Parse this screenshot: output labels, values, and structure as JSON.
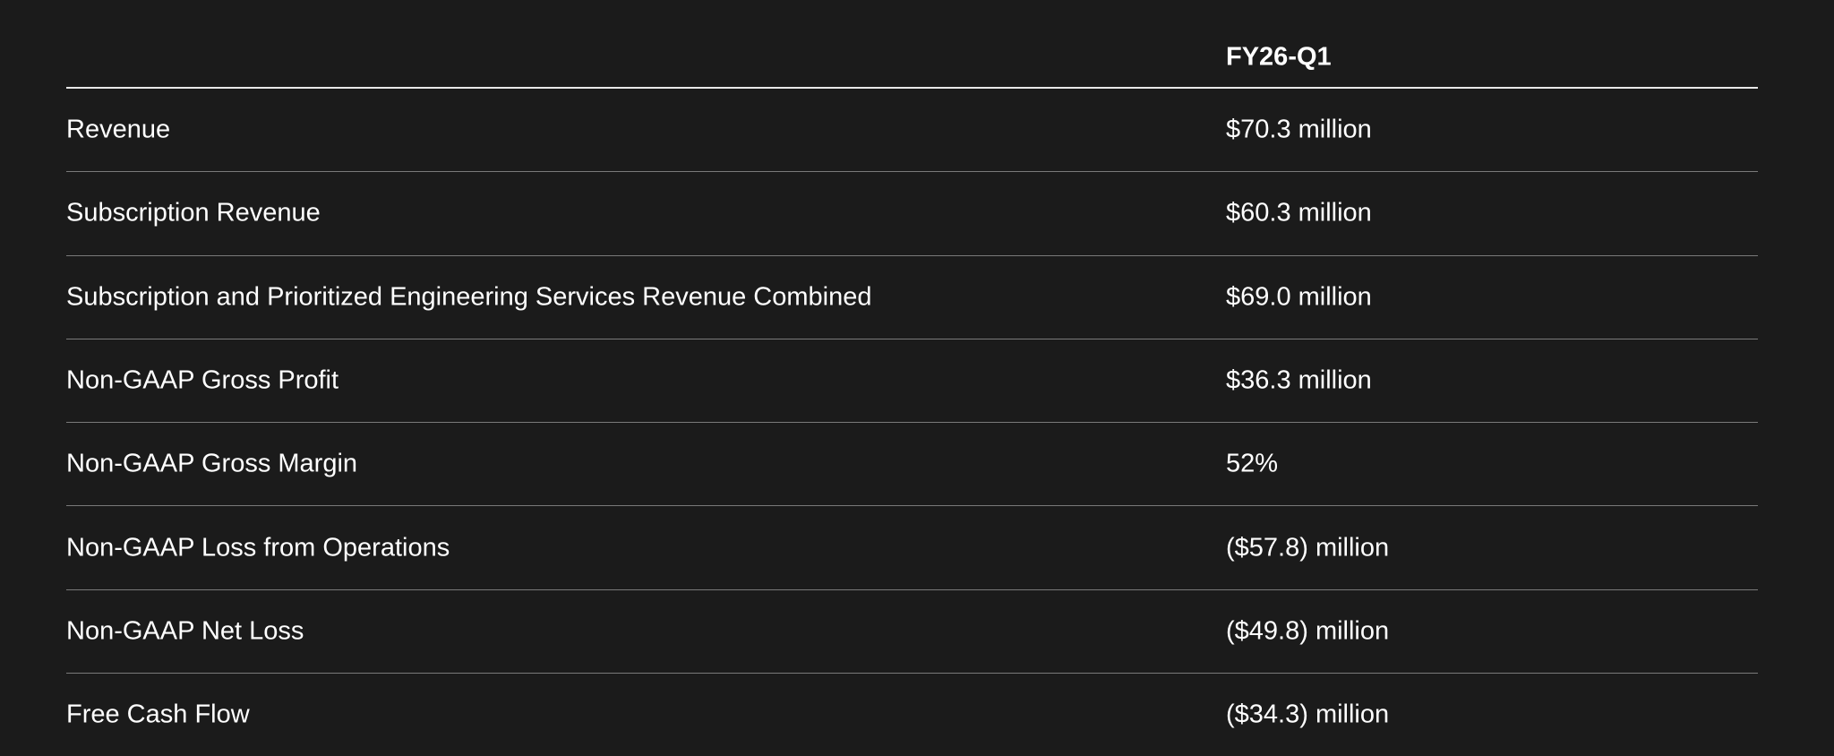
{
  "table": {
    "header": "FY26-Q1",
    "rows": [
      [
        "Revenue",
        "$70.3 million"
      ],
      [
        "Subscription Revenue",
        "$60.3 million"
      ],
      [
        "Subscription and Prioritized Engineering Services Revenue Combined",
        "$69.0 million"
      ],
      [
        "Non-GAAP Gross Profit",
        "$36.3 million"
      ],
      [
        "Non-GAAP Gross Margin",
        "52%"
      ],
      [
        "Non-GAAP Loss from Operations",
        "($57.8) million"
      ],
      [
        "Non-GAAP Net Loss",
        "($49.8) million"
      ],
      [
        "Free Cash Flow",
        "($34.3) million"
      ]
    ]
  }
}
